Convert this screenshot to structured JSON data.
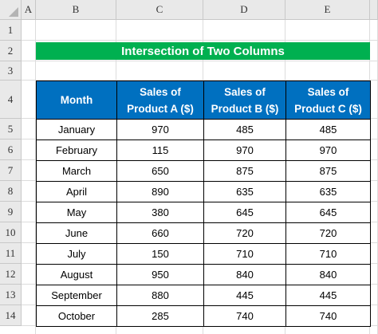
{
  "column_headers": [
    "A",
    "B",
    "C",
    "D",
    "E"
  ],
  "row_numbers": [
    1,
    2,
    3,
    4,
    5,
    6,
    7,
    8,
    9,
    10,
    11,
    12,
    13,
    14
  ],
  "title": "Intersection of Two Columns",
  "table": {
    "header": [
      "Month",
      "Sales of Product A ($)",
      "Sales of Product B ($)",
      "Sales of Product C ($)"
    ],
    "rows": [
      [
        "January",
        970,
        485,
        485
      ],
      [
        "February",
        115,
        970,
        970
      ],
      [
        "March",
        650,
        875,
        875
      ],
      [
        "April",
        890,
        635,
        635
      ],
      [
        "May",
        380,
        645,
        645
      ],
      [
        "June",
        660,
        720,
        720
      ],
      [
        "July",
        150,
        710,
        710
      ],
      [
        "August",
        950,
        840,
        840
      ],
      [
        "September",
        880,
        445,
        445
      ],
      [
        "October",
        285,
        740,
        740
      ]
    ]
  }
}
